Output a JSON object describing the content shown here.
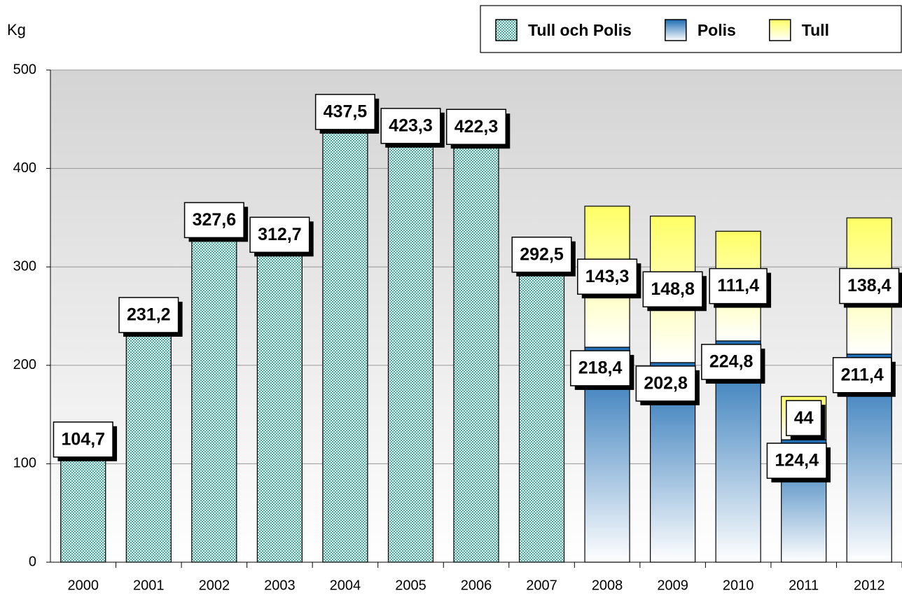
{
  "chart_data": {
    "type": "stacked_bar",
    "y_label": "Kg",
    "categories": [
      "2000",
      "2001",
      "2002",
      "2003",
      "2004",
      "2005",
      "2006",
      "2007",
      "2008",
      "2009",
      "2010",
      "2011",
      "2012"
    ],
    "series": [
      {
        "name": "Tull och Polis",
        "color": "#4fa89e",
        "values": [
          104.7,
          231.2,
          327.6,
          312.7,
          437.5,
          423.3,
          422.3,
          292.5,
          null,
          null,
          null,
          null,
          null
        ],
        "value_labels": [
          "104,7",
          "231,2",
          "327,6",
          "312,7",
          "437,5",
          "423,3",
          "422,3",
          "292,5",
          null,
          null,
          null,
          null,
          null
        ]
      },
      {
        "name": "Polis",
        "color": "#1f6db3",
        "values": [
          null,
          null,
          null,
          null,
          null,
          null,
          null,
          null,
          218.4,
          202.8,
          224.8,
          124.4,
          211.4
        ],
        "value_labels": [
          null,
          null,
          null,
          null,
          null,
          null,
          null,
          null,
          "218,4",
          "202,8",
          "224,8",
          "124,4",
          "211,4"
        ]
      },
      {
        "name": "Tull",
        "color": "#ffff66",
        "values": [
          null,
          null,
          null,
          null,
          null,
          null,
          null,
          null,
          143.3,
          148.8,
          111.4,
          44,
          138.4
        ],
        "value_labels": [
          null,
          null,
          null,
          null,
          null,
          null,
          null,
          null,
          "143,3",
          "148,8",
          "111,4",
          "44",
          "138,4"
        ]
      }
    ],
    "ylim": [
      0,
      500
    ],
    "yticks": [
      0,
      100,
      200,
      300,
      400,
      500
    ],
    "grid": true,
    "legend": "top right"
  }
}
